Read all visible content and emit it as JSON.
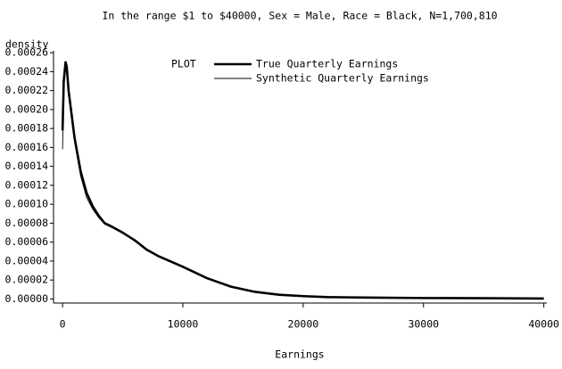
{
  "chart_data": {
    "type": "line",
    "title": "In the range $1 to $40000, Sex = Male, Race = Black, N=1,700,810",
    "y_label": "density",
    "x_label": "Earnings",
    "legend_title": "PLOT",
    "x": [
      1,
      100,
      250,
      350,
      500,
      700,
      1000,
      1500,
      2000,
      2500,
      3000,
      3500,
      4000,
      5000,
      6000,
      7000,
      8000,
      10000,
      12000,
      14000,
      16000,
      18000,
      20000,
      22000,
      25000,
      30000,
      35000,
      40000
    ],
    "series": [
      {
        "name": "True Quarterly Earnings",
        "color": "#000000",
        "width": 2.6,
        "values": [
          0.000178,
          0.00023,
          0.00025,
          0.000245,
          0.00022,
          0.0002,
          0.00017,
          0.000135,
          0.000112,
          9.8e-05,
          8.8e-05,
          8e-05,
          7.7e-05,
          7e-05,
          6.2e-05,
          5.2e-05,
          4.5e-05,
          3.4e-05,
          2.2e-05,
          1.3e-05,
          7.5e-06,
          4.5e-06,
          3e-06,
          2e-06,
          1.5e-06,
          1e-06,
          8e-07,
          5e-07
        ]
      },
      {
        "name": "Synthetic Quarterly Earnings",
        "color": "#000000",
        "width": 0.9,
        "values": [
          0.000158,
          0.000225,
          0.000247,
          0.000243,
          0.000218,
          0.000197,
          0.000166,
          0.00013,
          0.000107,
          9.5e-05,
          8.6e-05,
          7.9e-05,
          7.6e-05,
          7e-05,
          6.1e-05,
          5.2e-05,
          4.5e-05,
          3.4e-05,
          2.2e-05,
          1.3e-05,
          7.8e-06,
          4.7e-06,
          3.1e-06,
          2.1e-06,
          1.6e-06,
          1e-06,
          7e-07,
          5e-07
        ]
      }
    ],
    "xlim": [
      -750,
      40250
    ],
    "xticks": [
      0,
      10000,
      20000,
      30000,
      40000
    ],
    "ylim": [
      -4.3e-06,
      0.000262
    ],
    "yticks": [
      {
        "value": 0,
        "label": "0.00000"
      },
      {
        "value": 2e-05,
        "label": "0.00002"
      },
      {
        "value": 4e-05,
        "label": "0.00004"
      },
      {
        "value": 6e-05,
        "label": "0.00006"
      },
      {
        "value": 8e-05,
        "label": "0.00008"
      },
      {
        "value": 0.0001,
        "label": "0.00010"
      },
      {
        "value": 0.00012,
        "label": "0.00012"
      },
      {
        "value": 0.00014,
        "label": "0.00014"
      },
      {
        "value": 0.00016,
        "label": "0.00016"
      },
      {
        "value": 0.00018,
        "label": "0.00018"
      },
      {
        "value": 0.0002,
        "label": "0.00020"
      },
      {
        "value": 0.00022,
        "label": "0.00022"
      },
      {
        "value": 0.00024,
        "label": "0.00024"
      },
      {
        "value": 0.00026,
        "label": "0.00026"
      }
    ],
    "grid": false
  }
}
